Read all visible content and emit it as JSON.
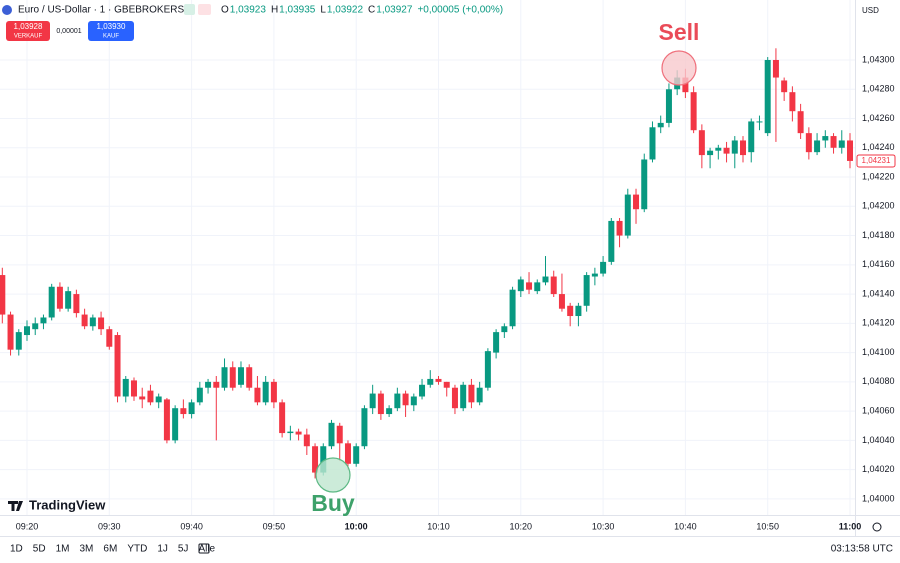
{
  "chart_data": {
    "type": "candlestick",
    "title": "Euro / US-Dollar · 1 · GBEBROKERS",
    "ohlc_legend": [
      {
        "label": "O",
        "value": "1,03923"
      },
      {
        "label": "H",
        "value": "1,03935"
      },
      {
        "label": "L",
        "value": "1,03922"
      },
      {
        "label": "C",
        "value": "1,03927"
      }
    ],
    "change": "+0,00005 (+0,00%)",
    "trade": {
      "sell_price": "1,03928",
      "sell_label": "VERKAUF",
      "spread": "0,00001",
      "buy_price": "1,03930",
      "buy_label": "KAUF"
    },
    "currency": "USD",
    "categories": [
      null,
      null,
      null,
      "09:20",
      null,
      null,
      null,
      null,
      null,
      null,
      null,
      null,
      null,
      "09:30",
      null,
      null,
      null,
      null,
      null,
      null,
      null,
      null,
      null,
      "09:40",
      null,
      null,
      null,
      null,
      null,
      null,
      null,
      null,
      null,
      "09:50",
      null,
      null,
      null,
      null,
      null,
      null,
      null,
      null,
      null,
      "10:00",
      null,
      null,
      null,
      null,
      null,
      null,
      null,
      null,
      null,
      "10:10",
      null,
      null,
      null,
      null,
      null,
      null,
      null,
      null,
      null,
      "10:20",
      null,
      null,
      null,
      null,
      null,
      null,
      null,
      null,
      null,
      "10:30",
      null,
      null,
      null,
      null,
      null,
      null,
      null,
      null,
      null,
      "10:40",
      null,
      null,
      null,
      null,
      null,
      null,
      null,
      null,
      null,
      "10:50",
      null,
      null,
      null,
      null,
      null,
      null,
      null,
      null,
      null,
      "11:00"
    ],
    "open": [
      1.04153,
      1.04126,
      1.04102,
      1.04112,
      1.04116,
      1.0412,
      1.04124,
      1.04145,
      1.0413,
      1.0414,
      1.04126,
      1.04118,
      1.04124,
      1.04116,
      1.04112,
      1.0407,
      1.04081,
      1.0407,
      1.04074,
      1.04066,
      1.04068,
      1.0404,
      1.04062,
      1.04058,
      1.04066,
      1.04076,
      1.0408,
      1.04076,
      1.0409,
      1.04078,
      1.0409,
      1.04076,
      1.04066,
      1.0408,
      1.04066,
      1.04045,
      1.04046,
      1.04044,
      1.04036,
      1.04018,
      1.04036,
      1.0405,
      1.04038,
      1.04024,
      1.04036,
      1.04062,
      1.04072,
      1.04058,
      1.04062,
      1.04072,
      1.04064,
      1.0407,
      1.04078,
      1.04082,
      1.0408,
      1.04076,
      1.04062,
      1.04078,
      1.04066,
      1.04076,
      1.041,
      1.04114,
      1.04118,
      1.04142,
      1.04148,
      1.04142,
      1.04148,
      1.04152,
      1.0414,
      1.04132,
      1.04125,
      1.04132,
      1.04152,
      1.04154,
      1.04162,
      1.0419,
      1.0418,
      1.04208,
      1.04198,
      1.04232,
      1.04254,
      1.04257,
      1.0428,
      1.04288,
      1.04278,
      1.04252,
      1.04235,
      1.04238,
      1.0424,
      1.04236,
      1.04245,
      1.04237,
      1.04258,
      1.0425,
      1.043,
      1.04286,
      1.04278,
      1.04265,
      1.0425,
      1.04237,
      1.04245,
      1.04248,
      1.0424,
      1.04245
    ],
    "high": [
      1.04158,
      1.04128,
      1.04116,
      1.04122,
      1.04124,
      1.04126,
      1.04147,
      1.04148,
      1.04145,
      1.04143,
      1.0413,
      1.04126,
      1.04128,
      1.04118,
      1.04114,
      1.04084,
      1.04083,
      1.04076,
      1.04078,
      1.04072,
      1.04069,
      1.04064,
      1.04068,
      1.04068,
      1.0408,
      1.04082,
      1.04084,
      1.04096,
      1.04094,
      1.04094,
      1.04092,
      1.04084,
      1.04084,
      1.04082,
      1.04068,
      1.0405,
      1.04048,
      1.04048,
      1.04038,
      1.04038,
      1.04054,
      1.04052,
      1.0404,
      1.04038,
      1.04064,
      1.04078,
      1.04074,
      1.04064,
      1.04076,
      1.04074,
      1.04072,
      1.04082,
      1.04088,
      1.04084,
      1.0408,
      1.04078,
      1.0408,
      1.04082,
      1.0408,
      1.04103,
      1.04116,
      1.0412,
      1.04145,
      1.04152,
      1.04155,
      1.0415,
      1.04166,
      1.04156,
      1.04154,
      1.04134,
      1.04134,
      1.04155,
      1.04158,
      1.04166,
      1.04192,
      1.04192,
      1.04212,
      1.04212,
      1.04236,
      1.04258,
      1.04262,
      1.04284,
      1.04293,
      1.04294,
      1.04282,
      1.04256,
      1.0424,
      1.04242,
      1.04244,
      1.04248,
      1.04248,
      1.0426,
      1.04262,
      1.04302,
      1.04308,
      1.04288,
      1.04282,
      1.0427,
      1.04254,
      1.0425,
      1.04252,
      1.0425,
      1.04252,
      1.0425
    ],
    "low": [
      1.0412,
      1.04098,
      1.04098,
      1.04108,
      1.04112,
      1.04116,
      1.04122,
      1.04128,
      1.04128,
      1.04124,
      1.04116,
      1.04115,
      1.04112,
      1.04102,
      1.04066,
      1.04066,
      1.04067,
      1.04062,
      1.04064,
      1.04062,
      1.04038,
      1.04038,
      1.04055,
      1.04055,
      1.04064,
      1.04072,
      1.0404,
      1.04074,
      1.04074,
      1.04076,
      1.04074,
      1.04064,
      1.04064,
      1.04062,
      1.04042,
      1.0404,
      1.0404,
      1.0403,
      1.04014,
      1.04016,
      1.04034,
      1.04026,
      1.0402,
      1.04022,
      1.04034,
      1.04058,
      1.04054,
      1.04056,
      1.0406,
      1.04056,
      1.0406,
      1.04068,
      1.04076,
      1.04078,
      1.0407,
      1.04058,
      1.0406,
      1.04062,
      1.04064,
      1.04074,
      1.04096,
      1.0411,
      1.04116,
      1.04138,
      1.0414,
      1.0414,
      1.04146,
      1.04138,
      1.04128,
      1.04118,
      1.04118,
      1.04128,
      1.04146,
      1.04152,
      1.0416,
      1.04172,
      1.04178,
      1.04188,
      1.04196,
      1.0423,
      1.0425,
      1.04254,
      1.04276,
      1.04274,
      1.0425,
      1.04226,
      1.04226,
      1.04232,
      1.0423,
      1.04226,
      1.0423,
      1.0423,
      1.04252,
      1.04248,
      1.04244,
      1.04272,
      1.04258,
      1.04246,
      1.04232,
      1.04235,
      1.0424,
      1.04236,
      1.04236,
      1.04226
    ],
    "close": [
      1.04126,
      1.04102,
      1.04114,
      1.04118,
      1.0412,
      1.04124,
      1.04145,
      1.0413,
      1.04142,
      1.04127,
      1.04118,
      1.04124,
      1.04116,
      1.04104,
      1.0407,
      1.04082,
      1.0407,
      1.04068,
      1.04066,
      1.0407,
      1.0404,
      1.04062,
      1.04058,
      1.04066,
      1.04076,
      1.0408,
      1.04076,
      1.0409,
      1.04076,
      1.0409,
      1.04076,
      1.04066,
      1.0408,
      1.04066,
      1.04045,
      1.04046,
      1.04044,
      1.04036,
      1.04018,
      1.04036,
      1.04052,
      1.04038,
      1.04024,
      1.04036,
      1.04062,
      1.04072,
      1.04058,
      1.04062,
      1.04072,
      1.04064,
      1.0407,
      1.04078,
      1.04082,
      1.0408,
      1.04076,
      1.04062,
      1.04078,
      1.04066,
      1.04076,
      1.04101,
      1.04114,
      1.04118,
      1.04143,
      1.0415,
      1.04143,
      1.04148,
      1.04152,
      1.0414,
      1.0413,
      1.04125,
      1.04132,
      1.04153,
      1.04154,
      1.04162,
      1.0419,
      1.0418,
      1.04208,
      1.04198,
      1.04232,
      1.04254,
      1.04257,
      1.0428,
      1.04288,
      1.04278,
      1.04252,
      1.04235,
      1.04238,
      1.0424,
      1.04236,
      1.04245,
      1.04235,
      1.04258,
      1.04258,
      1.043,
      1.04288,
      1.04278,
      1.04265,
      1.0425,
      1.04237,
      1.04245,
      1.04248,
      1.0424,
      1.04245,
      1.04231
    ],
    "up_color": "#089981",
    "down_color": "#f23645",
    "ylim": [
      1.03989,
      1.04341
    ],
    "yticks": [
      {
        "value": 1.04,
        "label": "1,04000"
      },
      {
        "value": 1.0402,
        "label": "1,04020"
      },
      {
        "value": 1.0404,
        "label": "1,04040"
      },
      {
        "value": 1.0406,
        "label": "1,04060"
      },
      {
        "value": 1.0408,
        "label": "1,04080"
      },
      {
        "value": 1.041,
        "label": "1,04100"
      },
      {
        "value": 1.0412,
        "label": "1,04120"
      },
      {
        "value": 1.0414,
        "label": "1,04140"
      },
      {
        "value": 1.0416,
        "label": "1,04160"
      },
      {
        "value": 1.0418,
        "label": "1,04180"
      },
      {
        "value": 1.042,
        "label": "1,04200"
      },
      {
        "value": 1.0422,
        "label": "1,04220"
      },
      {
        "value": 1.0424,
        "label": "1,04240"
      },
      {
        "value": 1.0426,
        "label": "1,04260"
      },
      {
        "value": 1.0428,
        "label": "1,04280"
      },
      {
        "value": 1.043,
        "label": "1,04300"
      }
    ],
    "last_price": {
      "value": 1.04231,
      "label": "1,04231"
    },
    "annotations": [
      "Sell",
      "Buy"
    ],
    "grid": true
  },
  "footer": {
    "brand": "TradingView",
    "timeframes": [
      "1D",
      "5D",
      "1M",
      "3M",
      "6M",
      "YTD",
      "1J",
      "5J",
      "Alle"
    ],
    "clock": "03:13:58 UTC"
  }
}
